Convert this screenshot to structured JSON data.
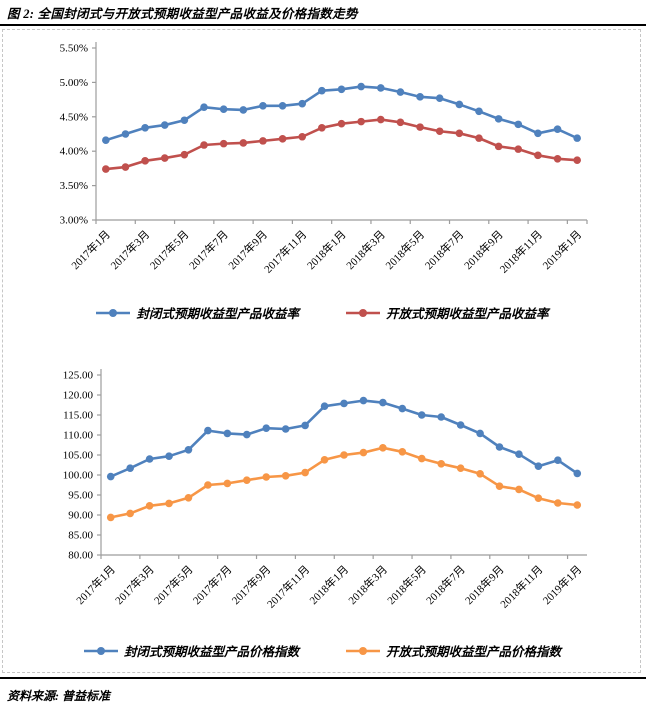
{
  "title": "图 2: 全国封闭式与开放式预期收益型产品收益及价格指数走势",
  "source": "资料来源: 普益标准",
  "colors": {
    "series_blue": "#4F81BD",
    "series_red": "#C0504D",
    "series_orange": "#F79646",
    "axis": "#9c9c9c"
  },
  "chart_data": [
    {
      "type": "line",
      "title": "",
      "ylabel": "",
      "xlabel": "",
      "ylim": [
        3.0,
        5.5
      ],
      "yticks": [
        "3.00%",
        "3.50%",
        "4.00%",
        "4.50%",
        "5.00%",
        "5.50%"
      ],
      "x_label_interval": 2,
      "grid": false,
      "legend_position": "bottom",
      "categories": [
        "2017年1月",
        "2017年2月",
        "2017年3月",
        "2017年4月",
        "2017年5月",
        "2017年6月",
        "2017年7月",
        "2017年8月",
        "2017年9月",
        "2017年10月",
        "2017年11月",
        "2017年12月",
        "2018年1月",
        "2018年2月",
        "2018年3月",
        "2018年4月",
        "2018年5月",
        "2018年6月",
        "2018年7月",
        "2018年8月",
        "2018年9月",
        "2018年10月",
        "2018年11月",
        "2018年12月",
        "2019年1月"
      ],
      "series": [
        {
          "name": "封闭式预期收益型产品收益率",
          "color_key": "series_blue",
          "values": [
            4.16,
            4.25,
            4.34,
            4.38,
            4.45,
            4.64,
            4.61,
            4.6,
            4.66,
            4.66,
            4.69,
            4.88,
            4.9,
            4.94,
            4.92,
            4.86,
            4.79,
            4.77,
            4.68,
            4.58,
            4.47,
            4.39,
            4.26,
            4.32,
            4.19
          ]
        },
        {
          "name": "开放式预期收益型产品收益率",
          "color_key": "series_red",
          "values": [
            3.74,
            3.77,
            3.86,
            3.9,
            3.95,
            4.09,
            4.11,
            4.12,
            4.15,
            4.18,
            4.21,
            4.34,
            4.4,
            4.43,
            4.46,
            4.42,
            4.35,
            4.29,
            4.26,
            4.19,
            4.07,
            4.03,
            3.94,
            3.89,
            3.87
          ]
        }
      ]
    },
    {
      "type": "line",
      "title": "",
      "ylabel": "",
      "xlabel": "",
      "ylim": [
        80,
        125
      ],
      "yticks": [
        "80.00",
        "85.00",
        "90.00",
        "95.00",
        "100.00",
        "105.00",
        "110.00",
        "115.00",
        "120.00",
        "125.00"
      ],
      "x_label_interval": 2,
      "grid": false,
      "legend_position": "bottom",
      "categories": [
        "2017年1月",
        "2017年2月",
        "2017年3月",
        "2017年4月",
        "2017年5月",
        "2017年6月",
        "2017年7月",
        "2017年8月",
        "2017年9月",
        "2017年10月",
        "2017年11月",
        "2017年12月",
        "2018年1月",
        "2018年2月",
        "2018年3月",
        "2018年4月",
        "2018年5月",
        "2018年6月",
        "2018年7月",
        "2018年8月",
        "2018年9月",
        "2018年10月",
        "2018年11月",
        "2018年12月",
        "2019年1月"
      ],
      "series": [
        {
          "name": "封闭式预期收益型产品价格指数",
          "color_key": "series_blue",
          "values": [
            99.6,
            101.7,
            104.0,
            104.7,
            106.3,
            111.1,
            110.4,
            110.1,
            111.7,
            111.5,
            112.4,
            117.2,
            117.9,
            118.6,
            118.1,
            116.6,
            115.0,
            114.5,
            112.5,
            110.4,
            107.0,
            105.2,
            102.2,
            103.7,
            100.4
          ]
        },
        {
          "name": "开放式预期收益型产品价格指数",
          "color_key": "series_orange",
          "values": [
            89.4,
            90.4,
            92.3,
            92.9,
            94.3,
            97.5,
            97.9,
            98.7,
            99.5,
            99.8,
            100.6,
            103.8,
            105.0,
            105.6,
            106.8,
            105.8,
            104.1,
            102.8,
            101.7,
            100.3,
            97.2,
            96.4,
            94.2,
            93.0,
            92.5
          ]
        }
      ]
    }
  ]
}
